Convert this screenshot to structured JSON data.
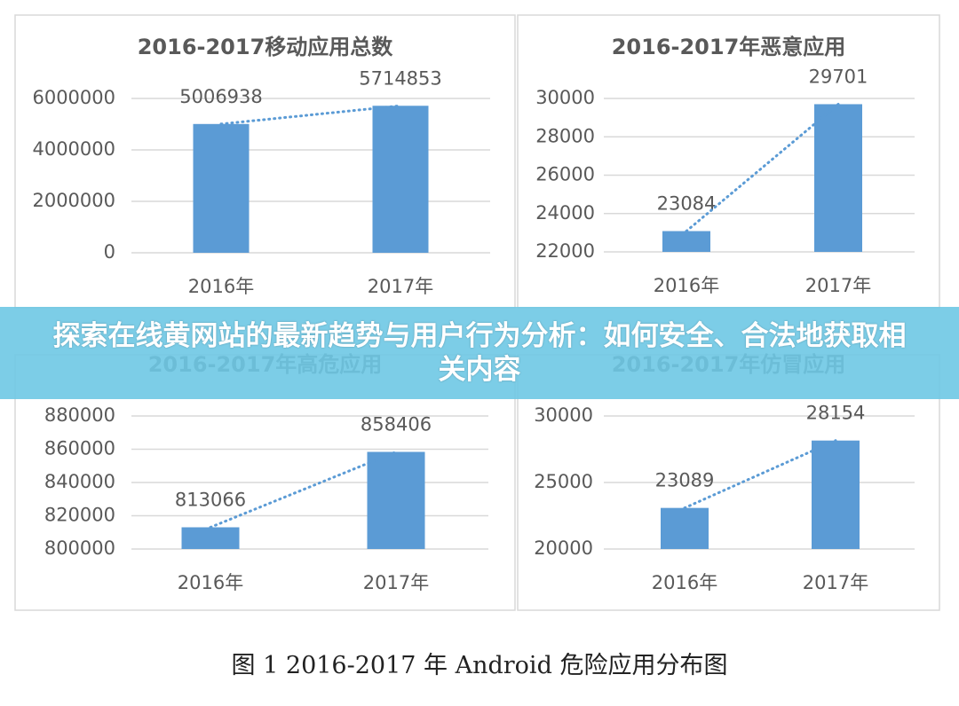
{
  "banner": {
    "title": "探索在线黄网站的最新趋势与用户行为分析：如何安全、合法地获取相关内容"
  },
  "caption": "图 1   2016-2017 年 Android 危险应用分布图",
  "colors": {
    "bar": "#5b9bd5",
    "trend": "#5b9bd5",
    "grid": "#d9d9d9",
    "text": "#595959",
    "banner": "#7ecfe6"
  },
  "chart_data": [
    {
      "type": "bar",
      "title": "2016-2017移动应用总数",
      "categories": [
        "2016年",
        "2017年"
      ],
      "values": [
        5006938,
        5714853
      ],
      "data_labels": [
        "5006938",
        "5714853"
      ],
      "yticks": [
        "0",
        "2000000",
        "4000000",
        "6000000"
      ],
      "ylim": [
        0,
        6000000
      ],
      "grid": true,
      "trendline": "dotted linear"
    },
    {
      "type": "bar",
      "title": "2016-2017年恶意应用",
      "categories": [
        "2016年",
        "2017年"
      ],
      "values": [
        23084,
        29701
      ],
      "data_labels": [
        "23084",
        "29701"
      ],
      "yticks": [
        "22000",
        "24000",
        "26000",
        "28000",
        "30000"
      ],
      "ylim": [
        22000,
        30000
      ],
      "grid": true,
      "trendline": "dotted linear"
    },
    {
      "type": "bar",
      "title": "2016-2017年高危应用",
      "categories": [
        "2016年",
        "2017年"
      ],
      "values": [
        813066,
        858406
      ],
      "data_labels": [
        "813066",
        "858406"
      ],
      "yticks": [
        "800000",
        "820000",
        "840000",
        "860000",
        "880000"
      ],
      "ylim": [
        800000,
        880000
      ],
      "grid": true,
      "trendline": "dotted linear"
    },
    {
      "type": "bar",
      "title": "2016-2017年仿冒应用",
      "categories": [
        "2016年",
        "2017年"
      ],
      "values": [
        23089,
        28154
      ],
      "data_labels": [
        "23089",
        "28154"
      ],
      "yticks": [
        "20000",
        "25000",
        "30000"
      ],
      "ylim": [
        20000,
        30000
      ],
      "grid": true,
      "trendline": "dotted linear"
    }
  ]
}
